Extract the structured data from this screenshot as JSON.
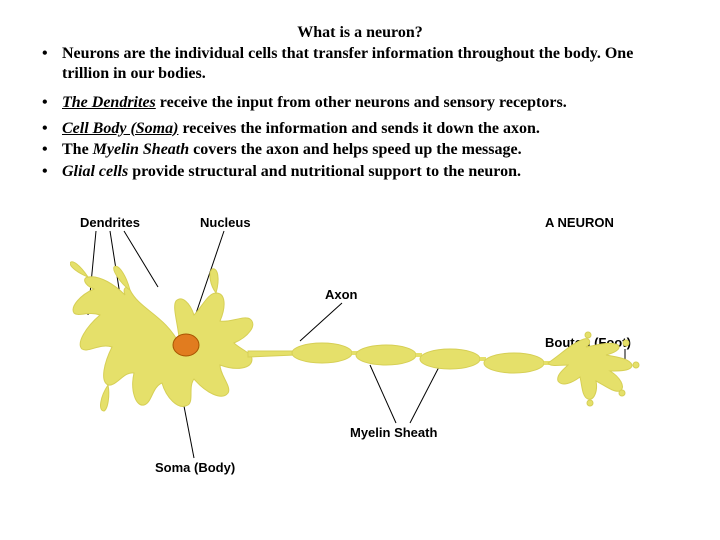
{
  "title": "What is a neuron?",
  "bullets1": [
    "Neurons are the individual cells that transfer information throughout the body. One trillion in our bodies."
  ],
  "bullets2_html": [
    "<em class='u'>The Dendrites</em> receive the input from other neurons and sensory receptors."
  ],
  "bullets3_html": [
    "<em class='u'>Cell Body (Soma)</em> receives the information and sends it down the axon.",
    "The <em class='i'>Myelin Sheath</em> covers the axon and helps speed up the message.",
    "<em class='i'>Glial cells</em> provide structural and nutritional support to the neuron."
  ],
  "diagram": {
    "labels": {
      "dendrites": "Dendrites",
      "nucleus": "Nucleus",
      "aneuron": "A NEURON",
      "axon": "Axon",
      "bouton": "Bouton (Foot)",
      "myelin": "Myelin Sheath",
      "soma": "Soma (Body)"
    },
    "colors": {
      "cell_fill": "#e5e06a",
      "cell_stroke": "#d6cf55",
      "nucleus_fill": "#e17c1f",
      "nucleus_stroke": "#a85500",
      "bg": "#ffffff",
      "line": "#000000"
    }
  }
}
